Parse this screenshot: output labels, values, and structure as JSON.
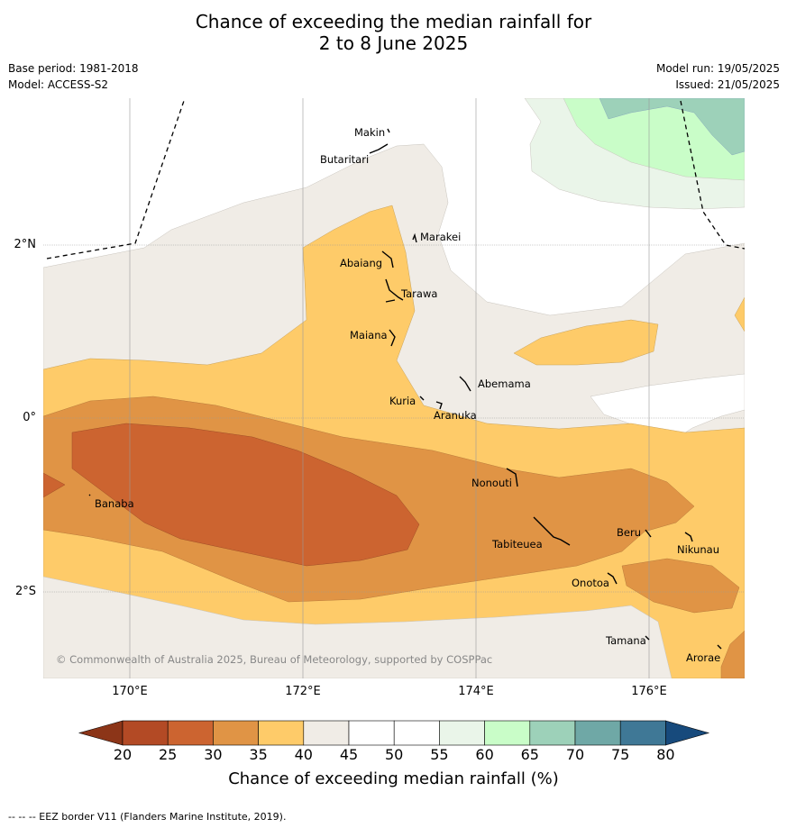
{
  "title_line1": "Chance of exceeding the median rainfall for",
  "title_line2": "2 to 8 June 2025",
  "base_period": "Base period: 1981-2018",
  "model": "Model: ACCESS-S2",
  "model_run": "Model run: 19/05/2025",
  "issued": "Issued: 21/05/2025",
  "copyright": "© Commonwealth of Australia 2025, Bureau of Meteorology, supported by COSPPac",
  "lon_labels": [
    "170°E",
    "172°E",
    "174°E",
    "176°E"
  ],
  "lat_labels": [
    "2°N",
    "0°",
    "2°S"
  ],
  "places": [
    "Makin",
    "Butaritari",
    "Marakei",
    "Abaiang",
    "Tarawa",
    "Maiana",
    "Abemama",
    "Kuria",
    "Aranuka",
    "Banaba",
    "Nonouti",
    "Tabiteuea",
    "Beru",
    "Nikunau",
    "Onotoa",
    "Tamana",
    "Arorae"
  ],
  "colorbar": {
    "title": "Chance of exceeding median rainfall (%)",
    "ticks": [
      "20",
      "25",
      "30",
      "35",
      "40",
      "45",
      "50",
      "55",
      "60",
      "65",
      "70",
      "75",
      "80"
    ],
    "colors": [
      "#b34a25",
      "#cc6430",
      "#e09445",
      "#fecb69",
      "#f0ece6",
      "#ffffff",
      "#ffffff",
      "#eaf5e9",
      "#c9fdc8",
      "#9dd1b9",
      "#6fa8a6",
      "#3f7896"
    ],
    "under_color": "#8c3518",
    "over_color": "#174a7c"
  },
  "footer": "--  --  -- EEZ border V11 (Flanders Marine Institute, 2019)."
}
